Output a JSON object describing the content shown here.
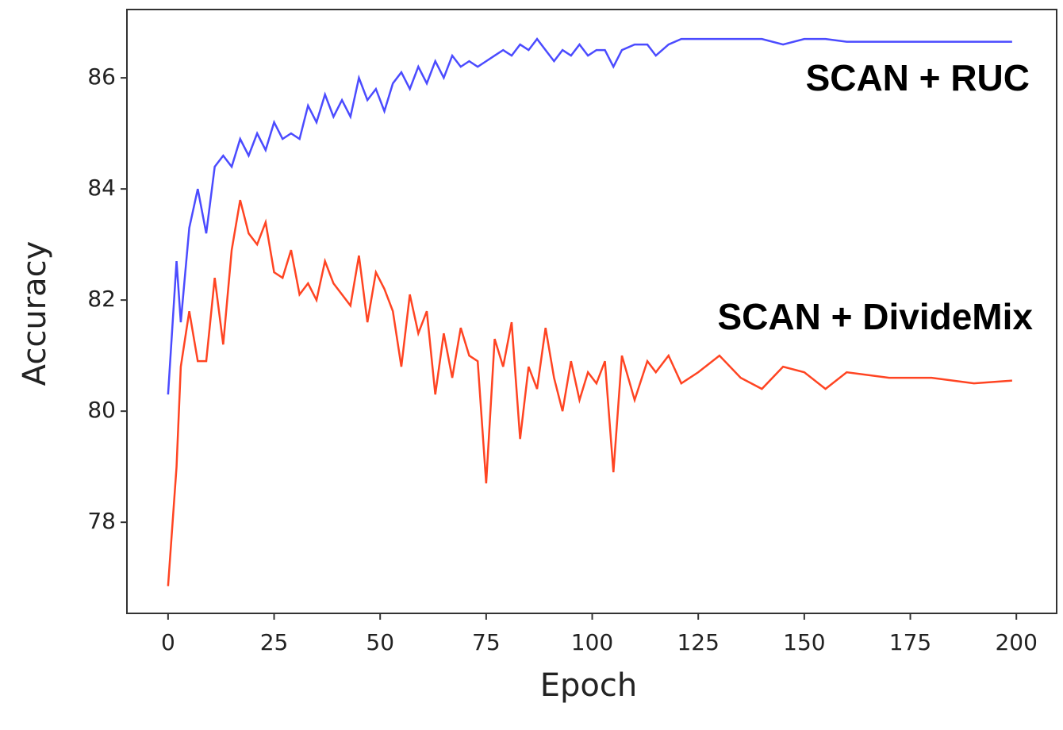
{
  "chart_data": {
    "type": "line",
    "xlabel": "Epoch",
    "ylabel": "Accuracy",
    "annotations": [
      "SCAN + RUC",
      "SCAN + DivideMix"
    ],
    "x": [
      0,
      2,
      3,
      5,
      7,
      9,
      11,
      13,
      15,
      17,
      19,
      21,
      23,
      25,
      27,
      29,
      31,
      33,
      35,
      37,
      39,
      41,
      43,
      45,
      47,
      49,
      51,
      53,
      55,
      57,
      59,
      61,
      63,
      65,
      67,
      69,
      71,
      73,
      75,
      77,
      79,
      81,
      83,
      85,
      87,
      89,
      91,
      93,
      95,
      97,
      99,
      101,
      103,
      105,
      107,
      110,
      113,
      115,
      118,
      121,
      125,
      130,
      135,
      140,
      145,
      150,
      155,
      160,
      170,
      180,
      190,
      199
    ],
    "series": [
      {
        "name": "SCAN + RUC",
        "color": "#4b4bff",
        "values": [
          80.3,
          82.7,
          81.6,
          83.3,
          84.0,
          83.2,
          84.4,
          84.6,
          84.4,
          84.9,
          84.6,
          85.0,
          84.7,
          85.2,
          84.9,
          85.0,
          84.9,
          85.5,
          85.2,
          85.7,
          85.3,
          85.6,
          85.3,
          86.0,
          85.6,
          85.8,
          85.4,
          85.9,
          86.1,
          85.8,
          86.2,
          85.9,
          86.3,
          86.0,
          86.4,
          86.2,
          86.3,
          86.2,
          86.3,
          86.4,
          86.5,
          86.4,
          86.6,
          86.5,
          86.7,
          86.5,
          86.3,
          86.5,
          86.4,
          86.6,
          86.4,
          86.5,
          86.5,
          86.2,
          86.5,
          86.6,
          86.6,
          86.4,
          86.6,
          86.7,
          86.7,
          86.7,
          86.7,
          86.7,
          86.6,
          86.7,
          86.7,
          86.65,
          86.65,
          86.65,
          86.65,
          86.65
        ]
      },
      {
        "name": "SCAN + DivideMix",
        "color": "#ff4422",
        "values": [
          76.85,
          79.0,
          80.8,
          81.8,
          80.9,
          80.9,
          82.4,
          81.2,
          82.9,
          83.8,
          83.2,
          83.0,
          83.4,
          82.5,
          82.4,
          82.9,
          82.1,
          82.3,
          82.0,
          82.7,
          82.3,
          82.1,
          81.9,
          82.8,
          81.6,
          82.5,
          82.2,
          81.8,
          80.8,
          82.1,
          81.4,
          81.8,
          80.3,
          81.4,
          80.6,
          81.5,
          81.0,
          80.9,
          78.7,
          81.3,
          80.8,
          81.6,
          79.5,
          80.8,
          80.4,
          81.5,
          80.6,
          80.0,
          80.9,
          80.2,
          80.7,
          80.5,
          80.9,
          78.9,
          81.0,
          80.2,
          80.9,
          80.7,
          81.0,
          80.5,
          80.7,
          81.0,
          80.6,
          80.4,
          80.8,
          80.7,
          80.4,
          80.7,
          80.6,
          80.6,
          80.5,
          80.55
        ]
      }
    ],
    "xlim": [
      -9.7,
      209.5
    ],
    "xticks": [
      0,
      25,
      50,
      75,
      100,
      125,
      150,
      175,
      200
    ],
    "ylim": [
      76.36,
      87.23
    ],
    "yticks": [
      78,
      80,
      82,
      84,
      86
    ]
  }
}
